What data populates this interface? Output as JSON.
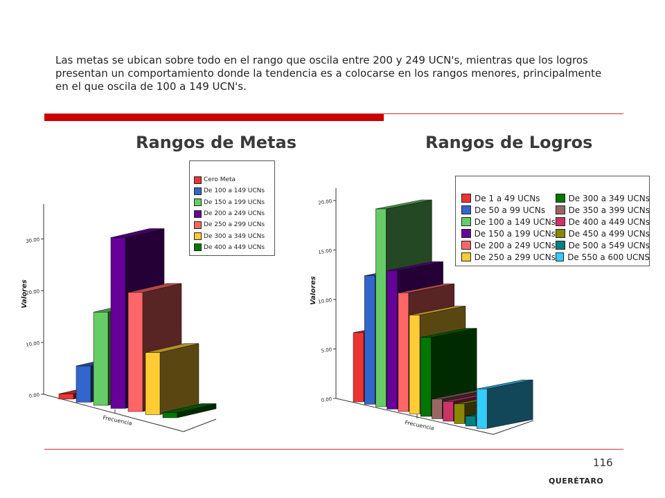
{
  "intro_text": "Las metas se ubican sobre todo en el rango que oscila entre 200 y 249 UCN's, mientras que los logros presentan un comportamiento donde la tendencia es a colocarse en los rangos menores, principalmente en el que oscila de 100 a 149 UCN's.",
  "page_number": "116",
  "footer_label": "QUERÉTARO",
  "colors": {
    "rule": "#cc0000",
    "title": "#3a3a3a"
  },
  "chart_data": [
    {
      "type": "bar",
      "title": "Rangos de Metas",
      "xlabel": "Frecuencia",
      "ylabel": "Valores",
      "ylim": [
        0,
        35
      ],
      "yticks": [
        "0.00",
        "10.00",
        "20.00",
        "30.00"
      ],
      "legend_position": "top-right",
      "series": [
        {
          "name": "Cero Meta",
          "value": 1,
          "color": "#ee3333"
        },
        {
          "name": "De 100 a 149 UCNs",
          "value": 7,
          "color": "#3366cc"
        },
        {
          "name": "De 150 a 199 UCNs",
          "value": 18,
          "color": "#66cc66"
        },
        {
          "name": "De 200 a 249 UCNs",
          "value": 33,
          "color": "#660099"
        },
        {
          "name": "De 250 a 299 UCNs",
          "value": 23,
          "color": "#ff6666"
        },
        {
          "name": "De 300 a 349 UCNs",
          "value": 12,
          "color": "#ffcc33"
        },
        {
          "name": "De 400 a 449 UCNs",
          "value": 1,
          "color": "#007700"
        }
      ]
    },
    {
      "type": "bar",
      "title": "Rangos de Logros",
      "xlabel": "Frecuencia",
      "ylabel": "Valores",
      "ylim": [
        0,
        20
      ],
      "yticks": [
        "0.00",
        "5.00",
        "10.00",
        "15.00",
        "20.00"
      ],
      "legend_position": "top-right",
      "series": [
        {
          "name": "De 1 a 49 UCNs",
          "value": 7,
          "color": "#ee3333"
        },
        {
          "name": "De 50 a 99 UCNs",
          "value": 13,
          "color": "#3366cc"
        },
        {
          "name": "De 100 a 149 UCNs",
          "value": 20,
          "color": "#66cc66"
        },
        {
          "name": "De 150 a 199 UCNs",
          "value": 14,
          "color": "#660099"
        },
        {
          "name": "De 200 a 249 UCNs",
          "value": 12,
          "color": "#ff6666"
        },
        {
          "name": "De 250 a 299 UCNs",
          "value": 10,
          "color": "#ffcc33"
        },
        {
          "name": "De 300 a 349 UCNs",
          "value": 8,
          "color": "#007700"
        },
        {
          "name": "De 350 a 399 UCNs",
          "value": 2,
          "color": "#996666"
        },
        {
          "name": "De 400 a 449 UCNs",
          "value": 2,
          "color": "#cc3366"
        },
        {
          "name": "De 450 a 499 UCNs",
          "value": 2,
          "color": "#888800"
        },
        {
          "name": "De 500 a 549 UCNs",
          "value": 1,
          "color": "#008080"
        },
        {
          "name": "De 550 a 600 UCNS",
          "value": 4,
          "color": "#33ccff"
        }
      ]
    }
  ]
}
